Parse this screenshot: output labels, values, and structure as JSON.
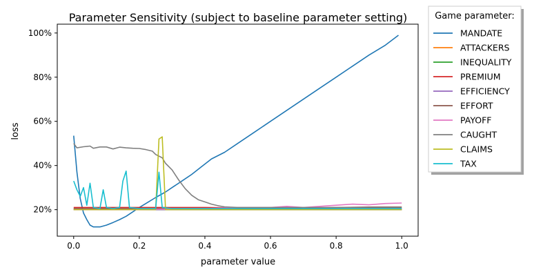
{
  "chart_data": {
    "type": "line",
    "title": "Parameter Sensitivity (subject to baseline parameter setting)",
    "xlabel": "parameter value",
    "ylabel": "loss",
    "xlim": [
      -0.05,
      1.05
    ],
    "ylim": [
      0.08,
      1.04
    ],
    "xticks": [
      0.0,
      0.2,
      0.4,
      0.6,
      0.8,
      1.0
    ],
    "xtick_labels": [
      "0.0",
      "0.2",
      "0.4",
      "0.6",
      "0.8",
      "1.0"
    ],
    "yticks": [
      0.2,
      0.4,
      0.6,
      0.8,
      1.0
    ],
    "ytick_labels": [
      "20%",
      "40%",
      "60%",
      "80%",
      "100%"
    ],
    "legend": {
      "title": "Game parameter:",
      "placement": "outside-top-right"
    },
    "grid": false,
    "series": [
      {
        "name": "MANDATE",
        "color": "#1f77b4",
        "points": [
          [
            0.0,
            0.535
          ],
          [
            0.01,
            0.37
          ],
          [
            0.02,
            0.25
          ],
          [
            0.03,
            0.185
          ],
          [
            0.04,
            0.155
          ],
          [
            0.05,
            0.13
          ],
          [
            0.06,
            0.122
          ],
          [
            0.08,
            0.122
          ],
          [
            0.1,
            0.13
          ],
          [
            0.12,
            0.142
          ],
          [
            0.14,
            0.155
          ],
          [
            0.16,
            0.17
          ],
          [
            0.18,
            0.19
          ],
          [
            0.2,
            0.21
          ],
          [
            0.22,
            0.228
          ],
          [
            0.25,
            0.255
          ],
          [
            0.28,
            0.28
          ],
          [
            0.3,
            0.3
          ],
          [
            0.33,
            0.33
          ],
          [
            0.36,
            0.36
          ],
          [
            0.39,
            0.395
          ],
          [
            0.42,
            0.43
          ],
          [
            0.46,
            0.46
          ],
          [
            0.5,
            0.5
          ],
          [
            0.55,
            0.55
          ],
          [
            0.6,
            0.6
          ],
          [
            0.65,
            0.65
          ],
          [
            0.7,
            0.7
          ],
          [
            0.75,
            0.75
          ],
          [
            0.8,
            0.8
          ],
          [
            0.85,
            0.85
          ],
          [
            0.9,
            0.9
          ],
          [
            0.95,
            0.945
          ],
          [
            0.99,
            0.99
          ]
        ]
      },
      {
        "name": "ATTACKERS",
        "color": "#ff7f0e",
        "points": [
          [
            0.0,
            0.205
          ],
          [
            0.1,
            0.202
          ],
          [
            0.2,
            0.2
          ],
          [
            0.3,
            0.2
          ],
          [
            0.4,
            0.2
          ],
          [
            0.5,
            0.2
          ],
          [
            0.6,
            0.2
          ],
          [
            0.7,
            0.2
          ],
          [
            0.8,
            0.2
          ],
          [
            0.9,
            0.2
          ],
          [
            1.0,
            0.2
          ]
        ]
      },
      {
        "name": "INEQUALITY",
        "color": "#2ca02c",
        "points": [
          [
            0.0,
            0.2
          ],
          [
            0.2,
            0.2
          ],
          [
            0.4,
            0.2
          ],
          [
            0.5,
            0.2
          ],
          [
            0.6,
            0.2
          ],
          [
            0.8,
            0.2
          ],
          [
            1.0,
            0.2
          ]
        ]
      },
      {
        "name": "PREMIUM",
        "color": "#d62728",
        "points": [
          [
            0.0,
            0.21
          ],
          [
            0.1,
            0.21
          ],
          [
            0.2,
            0.21
          ],
          [
            0.3,
            0.21
          ],
          [
            0.4,
            0.21
          ],
          [
            0.5,
            0.208
          ],
          [
            0.6,
            0.206
          ],
          [
            0.7,
            0.205
          ],
          [
            0.8,
            0.205
          ],
          [
            0.9,
            0.205
          ],
          [
            1.0,
            0.205
          ]
        ]
      },
      {
        "name": "EFFICIENCY",
        "color": "#9467bd",
        "points": [
          [
            0.0,
            0.2
          ],
          [
            0.2,
            0.2
          ],
          [
            0.4,
            0.2
          ],
          [
            0.6,
            0.2
          ],
          [
            0.8,
            0.2
          ],
          [
            1.0,
            0.2
          ]
        ]
      },
      {
        "name": "EFFORT",
        "color": "#8c564b",
        "points": [
          [
            0.0,
            0.205
          ],
          [
            0.2,
            0.205
          ],
          [
            0.4,
            0.205
          ],
          [
            0.6,
            0.205
          ],
          [
            0.8,
            0.21
          ],
          [
            0.9,
            0.212
          ],
          [
            1.0,
            0.212
          ]
        ]
      },
      {
        "name": "PAYOFF",
        "color": "#e377c2",
        "points": [
          [
            0.0,
            0.2
          ],
          [
            0.2,
            0.2
          ],
          [
            0.4,
            0.205
          ],
          [
            0.5,
            0.21
          ],
          [
            0.6,
            0.21
          ],
          [
            0.65,
            0.215
          ],
          [
            0.7,
            0.21
          ],
          [
            0.75,
            0.215
          ],
          [
            0.8,
            0.22
          ],
          [
            0.85,
            0.225
          ],
          [
            0.9,
            0.222
          ],
          [
            0.95,
            0.228
          ],
          [
            1.0,
            0.23
          ]
        ]
      },
      {
        "name": "CAUGHT",
        "color": "#7f7f7f",
        "points": [
          [
            0.0,
            0.5
          ],
          [
            0.01,
            0.48
          ],
          [
            0.03,
            0.485
          ],
          [
            0.05,
            0.488
          ],
          [
            0.06,
            0.478
          ],
          [
            0.08,
            0.484
          ],
          [
            0.1,
            0.484
          ],
          [
            0.12,
            0.475
          ],
          [
            0.14,
            0.483
          ],
          [
            0.16,
            0.48
          ],
          [
            0.18,
            0.478
          ],
          [
            0.2,
            0.477
          ],
          [
            0.22,
            0.472
          ],
          [
            0.24,
            0.465
          ],
          [
            0.25,
            0.45
          ],
          [
            0.27,
            0.435
          ],
          [
            0.28,
            0.41
          ],
          [
            0.3,
            0.38
          ],
          [
            0.32,
            0.335
          ],
          [
            0.34,
            0.295
          ],
          [
            0.36,
            0.265
          ],
          [
            0.38,
            0.245
          ],
          [
            0.4,
            0.235
          ],
          [
            0.42,
            0.225
          ],
          [
            0.44,
            0.218
          ],
          [
            0.46,
            0.213
          ],
          [
            0.5,
            0.21
          ],
          [
            0.6,
            0.21
          ],
          [
            0.7,
            0.21
          ],
          [
            0.8,
            0.21
          ],
          [
            0.9,
            0.21
          ],
          [
            1.0,
            0.21
          ]
        ]
      },
      {
        "name": "CLAIMS",
        "color": "#bcbd22",
        "points": [
          [
            0.0,
            0.2
          ],
          [
            0.2,
            0.2
          ],
          [
            0.25,
            0.2
          ],
          [
            0.26,
            0.52
          ],
          [
            0.27,
            0.53
          ],
          [
            0.28,
            0.2
          ],
          [
            0.4,
            0.2
          ],
          [
            0.6,
            0.2
          ],
          [
            0.8,
            0.2
          ],
          [
            1.0,
            0.2
          ]
        ]
      },
      {
        "name": "TAX",
        "color": "#17becf",
        "points": [
          [
            0.0,
            0.33
          ],
          [
            0.01,
            0.29
          ],
          [
            0.02,
            0.26
          ],
          [
            0.03,
            0.3
          ],
          [
            0.04,
            0.22
          ],
          [
            0.05,
            0.32
          ],
          [
            0.06,
            0.21
          ],
          [
            0.08,
            0.205
          ],
          [
            0.09,
            0.29
          ],
          [
            0.1,
            0.21
          ],
          [
            0.12,
            0.205
          ],
          [
            0.14,
            0.21
          ],
          [
            0.15,
            0.33
          ],
          [
            0.16,
            0.375
          ],
          [
            0.17,
            0.21
          ],
          [
            0.2,
            0.205
          ],
          [
            0.25,
            0.205
          ],
          [
            0.26,
            0.37
          ],
          [
            0.27,
            0.21
          ],
          [
            0.3,
            0.205
          ],
          [
            0.4,
            0.205
          ],
          [
            0.6,
            0.205
          ],
          [
            0.8,
            0.205
          ],
          [
            1.0,
            0.205
          ]
        ]
      }
    ]
  }
}
